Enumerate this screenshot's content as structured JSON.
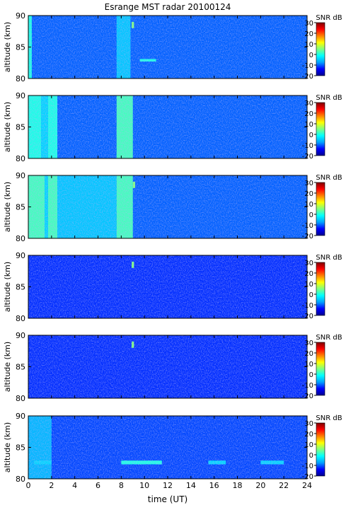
{
  "chart_data": {
    "type": "heatmap",
    "title": "Esrange MST radar 20100124",
    "xlabel": "time (UT)",
    "ylabel": "altitude (km)",
    "xlim": [
      0,
      24
    ],
    "ylim": [
      80,
      90
    ],
    "x_ticks": [
      0,
      2,
      4,
      6,
      8,
      10,
      12,
      14,
      16,
      18,
      20,
      22,
      24
    ],
    "y_ticks": [
      80,
      85,
      90
    ],
    "colorbar": {
      "label": "SNR dB",
      "range": [
        -20,
        30
      ],
      "ticks": [
        30,
        20,
        10,
        0,
        -10,
        -20
      ],
      "colors": [
        "#00008f",
        "#0000ff",
        "#00a0ff",
        "#00ffff",
        "#80ff80",
        "#ffff00",
        "#ff8000",
        "#ff0000",
        "#800000"
      ]
    },
    "panels": [
      {
        "baseline_snr_db": -10,
        "features": [
          {
            "kind": "band",
            "t_start": 0.0,
            "t_end": 0.3,
            "alt_min": 80,
            "alt_max": 90,
            "snr_db": 0
          },
          {
            "kind": "band",
            "t_start": 7.6,
            "t_end": 8.8,
            "alt_min": 80,
            "alt_max": 90,
            "snr_db": -5
          },
          {
            "kind": "spot",
            "t_start": 8.9,
            "t_end": 9.1,
            "alt_min": 88.0,
            "alt_max": 89.0,
            "snr_db": 5
          },
          {
            "kind": "spot",
            "t_start": 9.6,
            "t_end": 11.0,
            "alt_min": 82.7,
            "alt_max": 83.1,
            "snr_db": 0
          }
        ]
      },
      {
        "baseline_snr_db": -10,
        "features": [
          {
            "kind": "band",
            "t_start": 0.0,
            "t_end": 1.1,
            "alt_min": 80,
            "alt_max": 90,
            "snr_db": 0
          },
          {
            "kind": "band",
            "t_start": 1.1,
            "t_end": 1.7,
            "alt_min": 80,
            "alt_max": 90,
            "snr_db": -4
          },
          {
            "kind": "band",
            "t_start": 1.7,
            "t_end": 2.5,
            "alt_min": 80,
            "alt_max": 90,
            "snr_db": 0
          },
          {
            "kind": "band",
            "t_start": 7.6,
            "t_end": 9.0,
            "alt_min": 80,
            "alt_max": 90,
            "snr_db": 2
          }
        ]
      },
      {
        "baseline_snr_db": -10,
        "features": [
          {
            "kind": "band",
            "t_start": 0.0,
            "t_end": 1.4,
            "alt_min": 80,
            "alt_max": 90,
            "snr_db": 2
          },
          {
            "kind": "band",
            "t_start": 1.4,
            "t_end": 1.7,
            "alt_min": 80,
            "alt_max": 90,
            "snr_db": -4
          },
          {
            "kind": "band",
            "t_start": 1.7,
            "t_end": 2.5,
            "alt_min": 80,
            "alt_max": 90,
            "snr_db": 2
          },
          {
            "kind": "band",
            "t_start": 2.5,
            "t_end": 7.6,
            "alt_min": 80,
            "alt_max": 90,
            "snr_db": -5
          },
          {
            "kind": "band",
            "t_start": 7.6,
            "t_end": 9.0,
            "alt_min": 80,
            "alt_max": 90,
            "snr_db": 2
          },
          {
            "kind": "spot",
            "t_start": 9.0,
            "t_end": 9.2,
            "alt_min": 88.0,
            "alt_max": 89.0,
            "snr_db": 5
          }
        ]
      },
      {
        "baseline_snr_db": -12,
        "features": [
          {
            "kind": "spot",
            "t_start": 8.9,
            "t_end": 9.1,
            "alt_min": 88.0,
            "alt_max": 89.0,
            "snr_db": 5
          }
        ]
      },
      {
        "baseline_snr_db": -12,
        "features": [
          {
            "kind": "spot",
            "t_start": 8.9,
            "t_end": 9.1,
            "alt_min": 88.0,
            "alt_max": 89.0,
            "snr_db": 5
          }
        ]
      },
      {
        "baseline_snr_db": -11,
        "features": [
          {
            "kind": "band",
            "t_start": 0.0,
            "t_end": 2.0,
            "alt_min": 80,
            "alt_max": 90,
            "snr_db": -6
          },
          {
            "kind": "spot",
            "t_start": 8.0,
            "t_end": 11.5,
            "alt_min": 82.3,
            "alt_max": 82.9,
            "snr_db": 0
          },
          {
            "kind": "spot",
            "t_start": 0.5,
            "t_end": 2.0,
            "alt_min": 82.3,
            "alt_max": 82.9,
            "snr_db": -4
          },
          {
            "kind": "spot",
            "t_start": 15.5,
            "t_end": 17.0,
            "alt_min": 82.3,
            "alt_max": 82.9,
            "snr_db": -4
          },
          {
            "kind": "spot",
            "t_start": 20.0,
            "t_end": 22.0,
            "alt_min": 82.3,
            "alt_max": 82.9,
            "snr_db": -4
          }
        ]
      }
    ]
  }
}
